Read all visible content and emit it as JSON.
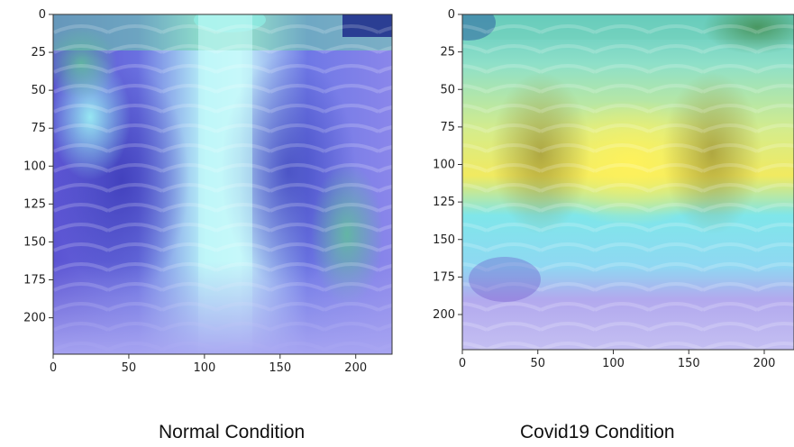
{
  "panels": [
    {
      "caption": "Normal Condition",
      "x_ticks": [
        "0",
        "50",
        "100",
        "150",
        "200"
      ],
      "y_ticks": [
        "0",
        "25",
        "50",
        "75",
        "100",
        "125",
        "150",
        "175",
        "200"
      ]
    },
    {
      "caption": "Covid19 Condition",
      "x_ticks": [
        "0",
        "50",
        "100",
        "150",
        "200"
      ],
      "y_ticks": [
        "0",
        "25",
        "50",
        "75",
        "100",
        "125",
        "150",
        "175",
        "200"
      ]
    }
  ],
  "colors": {
    "heat_low": "#5a55d8",
    "heat_mid": "#7fe9f0",
    "heat_high": "#f4ea5a",
    "dark_corner": "#1d2a8a"
  }
}
